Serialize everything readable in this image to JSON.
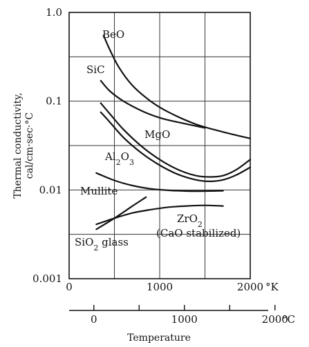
{
  "chart_data": {
    "type": "line",
    "title": "",
    "ylabel_line1": "Thermal conductivity,",
    "ylabel_line2": "cal/cm·sec·°C",
    "xlabel": "Temperature",
    "x_unit_K": "°K",
    "x_unit_C": "°C",
    "y_scale": "log",
    "ylim": [
      0.001,
      1.0
    ],
    "xlim_K": [
      0,
      2000
    ],
    "grid": true,
    "y_ticks": [
      {
        "value": 1.0,
        "label": "1.0"
      },
      {
        "value": 0.1,
        "label": "0.1"
      },
      {
        "value": 0.01,
        "label": "0.01"
      },
      {
        "value": 0.001,
        "label": "0.001"
      }
    ],
    "y_grid_values": [
      0.3162,
      0.03162,
      0.003162
    ],
    "x_ticks_K": [
      {
        "value": 0,
        "label": "0"
      },
      {
        "value": 1000,
        "label": "1000"
      },
      {
        "value": 2000,
        "label": "2000"
      }
    ],
    "x_grid_K": [
      500,
      1000,
      1500
    ],
    "x_ticks_C": [
      {
        "value": 0,
        "label": "0"
      },
      {
        "value": 1000,
        "label": "1000"
      },
      {
        "value": 2000,
        "label": "2000"
      }
    ],
    "x_minor_C": [
      500,
      1500
    ],
    "series": [
      {
        "name": "BeO",
        "x": [
          380,
          450,
          550,
          700,
          900,
          1100,
          1400,
          1700,
          2000
        ],
        "y": [
          0.55,
          0.38,
          0.24,
          0.15,
          0.1,
          0.075,
          0.055,
          0.045,
          0.038
        ]
      },
      {
        "name": "SiC",
        "x": [
          350,
          450,
          600,
          800,
          1000,
          1200,
          1500
        ],
        "y": [
          0.17,
          0.13,
          0.1,
          0.078,
          0.065,
          0.058,
          0.05
        ]
      },
      {
        "name": "MgO",
        "x": [
          350,
          450,
          600,
          800,
          1000,
          1200,
          1400,
          1550,
          1700,
          1850,
          2000
        ],
        "y": [
          0.095,
          0.072,
          0.048,
          0.031,
          0.022,
          0.017,
          0.0145,
          0.014,
          0.0145,
          0.017,
          0.022
        ]
      },
      {
        "name": "Al₂O₃",
        "x": [
          350,
          450,
          600,
          800,
          1000,
          1200,
          1400,
          1550,
          1700,
          1850,
          2000
        ],
        "y": [
          0.075,
          0.058,
          0.039,
          0.026,
          0.019,
          0.015,
          0.013,
          0.0125,
          0.013,
          0.0148,
          0.018
        ]
      },
      {
        "name": "Mullite",
        "x": [
          300,
          500,
          700,
          900,
          1100,
          1300,
          1500,
          1700
        ],
        "y": [
          0.0155,
          0.0128,
          0.0112,
          0.0103,
          0.0099,
          0.0097,
          0.0097,
          0.0098
        ]
      },
      {
        "name": "ZrO₂ (CaO stabilized)",
        "x": [
          300,
          500,
          700,
          900,
          1100,
          1300,
          1500,
          1700
        ],
        "y": [
          0.0041,
          0.0048,
          0.0055,
          0.006,
          0.0064,
          0.0066,
          0.0067,
          0.0066
        ]
      },
      {
        "name": "SiO₂ glass",
        "x": [
          300,
          500,
          700,
          850
        ],
        "y": [
          0.0036,
          0.0048,
          0.0066,
          0.0083
        ]
      }
    ],
    "series_labels": [
      {
        "parts": [
          {
            "t": "BeO"
          }
        ]
      },
      {
        "parts": [
          {
            "t": "SiC"
          }
        ]
      },
      {
        "parts": [
          {
            "t": "MgO"
          }
        ]
      },
      {
        "parts": [
          {
            "t": "Al"
          },
          {
            "t": "2",
            "sub": true
          },
          {
            "t": "O"
          },
          {
            "t": "3",
            "sub": true
          }
        ]
      },
      {
        "parts": [
          {
            "t": "Mullite"
          }
        ]
      },
      {
        "parts": [
          {
            "t": "ZrO"
          },
          {
            "t": "2",
            "sub": true
          }
        ]
      },
      {
        "parts": [
          {
            "t": "(CaO stabilized)"
          }
        ]
      },
      {
        "parts": [
          {
            "t": "SiO"
          },
          {
            "t": "2",
            "sub": true
          },
          {
            "t": " glass"
          }
        ]
      }
    ]
  }
}
